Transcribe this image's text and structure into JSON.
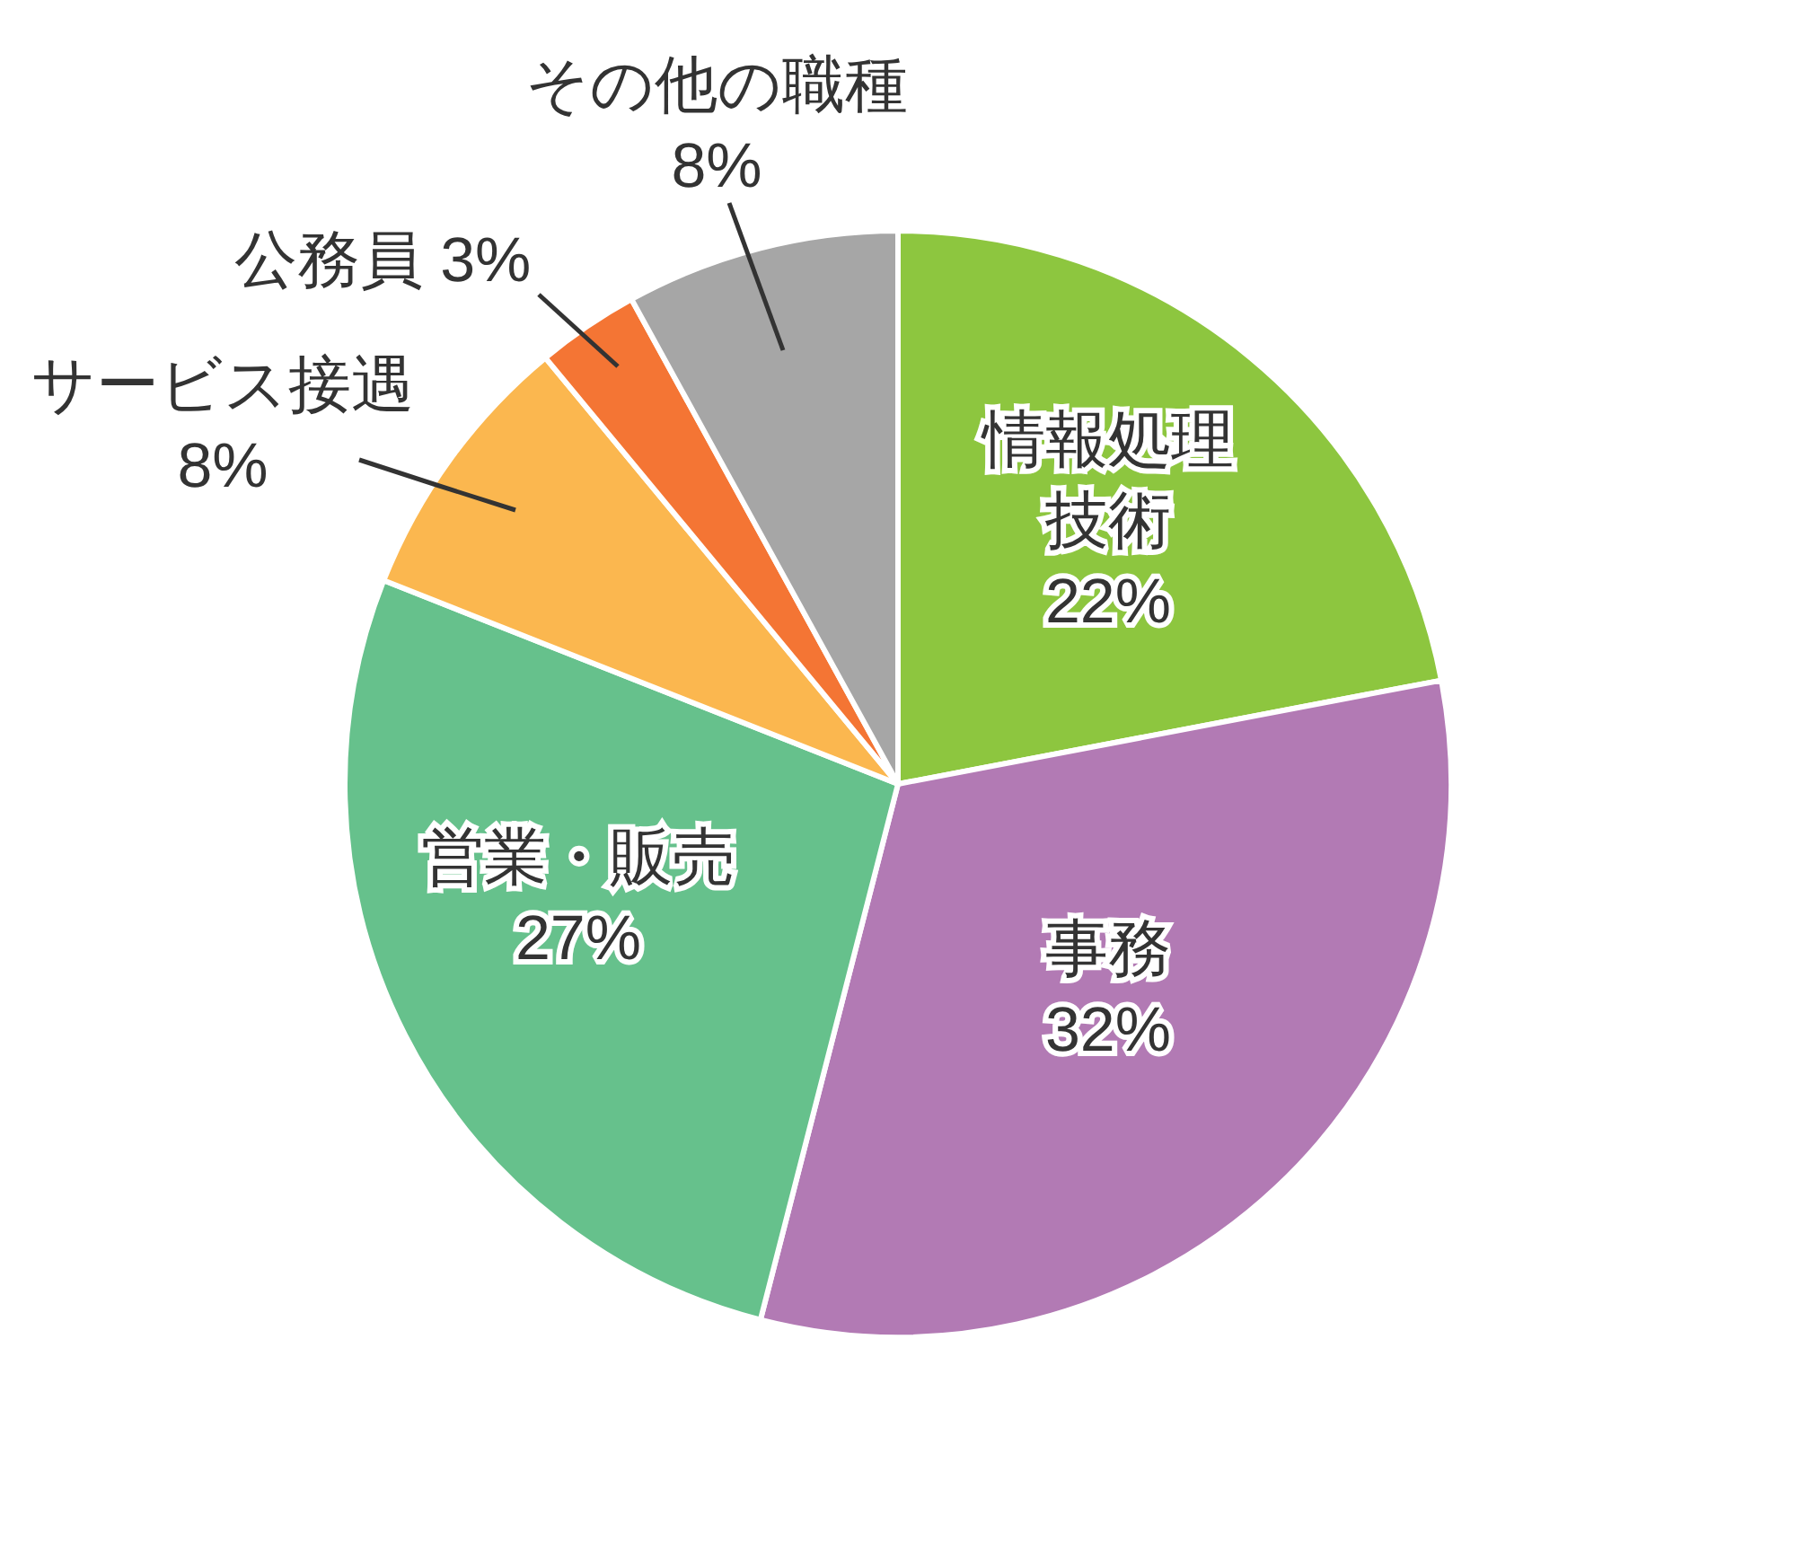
{
  "chart_data": {
    "type": "pie",
    "categories": [
      "情報処理技術",
      "事務",
      "営業・販売",
      "サービス接遇",
      "公務員",
      "その他の職種"
    ],
    "values": [
      22,
      32,
      27,
      8,
      3,
      8
    ],
    "value_labels": [
      "22%",
      "32%",
      "27%",
      "8%",
      "3%",
      "8%"
    ],
    "colors": [
      "#8dc63f",
      "#b27ab4",
      "#66c18c",
      "#fbb74f",
      "#f47534",
      "#a6a6a6"
    ]
  }
}
